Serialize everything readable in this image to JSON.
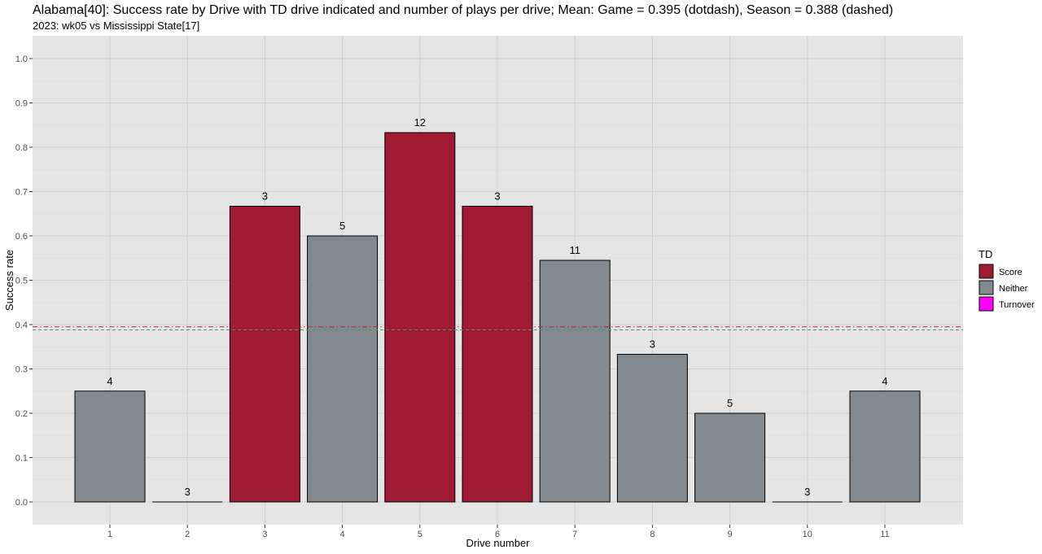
{
  "chart_data": {
    "type": "bar",
    "title": "Alabama[40]: Success rate by Drive with TD drive indicated and number of plays per drive; Mean: Game = 0.395 (dotdash), Season = 0.388 (dashed)",
    "subtitle": "2023: wk05 vs Mississippi State[17]",
    "xlabel": "Drive number",
    "ylabel": "Success rate",
    "ylim": [
      0,
      1.0
    ],
    "yticks": [
      "0.0",
      "0.1",
      "0.2",
      "0.3",
      "0.4",
      "0.5",
      "0.6",
      "0.7",
      "0.8",
      "0.9",
      "1.0"
    ],
    "categories": [
      "1",
      "2",
      "3",
      "4",
      "5",
      "6",
      "7",
      "8",
      "9",
      "10",
      "11"
    ],
    "values": [
      0.25,
      0.0,
      0.667,
      0.6,
      0.833,
      0.667,
      0.545,
      0.333,
      0.2,
      0.0,
      0.25
    ],
    "plays": [
      "4",
      "3",
      "3",
      "5",
      "12",
      "3",
      "11",
      "3",
      "5",
      "3",
      "4"
    ],
    "td": [
      "Neither",
      "Neither",
      "Score",
      "Neither",
      "Score",
      "Score",
      "Neither",
      "Neither",
      "Neither",
      "Neither",
      "Neither"
    ],
    "game_mean": 0.395,
    "season_mean": 0.388,
    "grid": true,
    "legend": {
      "title": "TD",
      "placement": "right",
      "entries": [
        {
          "label": "Score",
          "color": "#9E1B32"
        },
        {
          "label": "Neither",
          "color": "#828A8F"
        },
        {
          "label": "Turnover",
          "color": "#FF00FF"
        }
      ]
    },
    "colors": {
      "panel": "#E5E5E5",
      "grid": "#D0D0D0",
      "game_line": "#B22234",
      "season_line": "#5E8A7A"
    }
  }
}
